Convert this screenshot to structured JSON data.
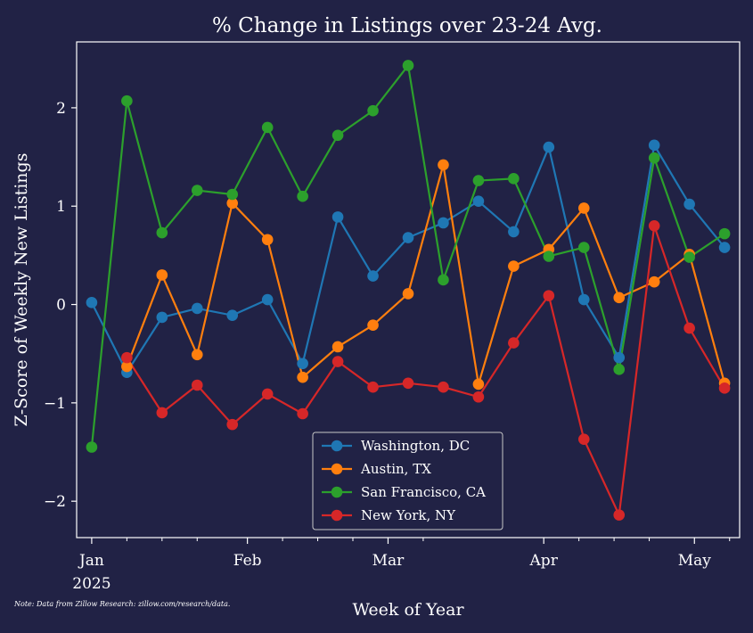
{
  "chart_data": {
    "type": "line",
    "title": "% Change in Listings over 23-24 Avg.",
    "xlabel": "Week of Year",
    "ylabel": "Z-Score of Weekly New Listings",
    "note": "Note: Data from Zillow Research: zillow.com/research/data.",
    "x": [
      "2025-01-01",
      "2025-01-08",
      "2025-01-15",
      "2025-01-22",
      "2025-01-29",
      "2025-02-05",
      "2025-02-12",
      "2025-02-19",
      "2025-02-26",
      "2025-03-05",
      "2025-03-12",
      "2025-03-19",
      "2025-03-26",
      "2025-04-02",
      "2025-04-09",
      "2025-04-16",
      "2025-04-23",
      "2025-04-30",
      "2025-05-07"
    ],
    "xlim": [
      "2024-12-29",
      "2025-05-10"
    ],
    "ylim": [
      -2.37,
      2.67
    ],
    "x_ticks": [
      {
        "date": "2025-01-01",
        "label": "Jan",
        "sublabel": "2025"
      },
      {
        "date": "2025-02-01",
        "label": "Feb",
        "sublabel": ""
      },
      {
        "date": "2025-03-01",
        "label": "Mar",
        "sublabel": ""
      },
      {
        "date": "2025-04-01",
        "label": "Apr",
        "sublabel": ""
      },
      {
        "date": "2025-05-01",
        "label": "May",
        "sublabel": ""
      }
    ],
    "minor_x_ticks": [
      "2025-01-08",
      "2025-01-15",
      "2025-01-22",
      "2025-02-08",
      "2025-02-15",
      "2025-02-22",
      "2025-03-08",
      "2025-04-08",
      "2025-04-15",
      "2025-04-22",
      "2025-05-08"
    ],
    "y_ticks": [
      {
        "value": 2,
        "label": "2"
      },
      {
        "value": 1,
        "label": "1"
      },
      {
        "value": 0,
        "label": "0"
      },
      {
        "value": -1,
        "label": "−1"
      },
      {
        "value": -2,
        "label": "−2"
      }
    ],
    "grid": false,
    "legend_position": "bottom-center",
    "series": [
      {
        "name": "Washington, DC",
        "color": "#1f77b4",
        "values": [
          0.02,
          -0.69,
          -0.13,
          -0.04,
          -0.11,
          0.05,
          -0.6,
          0.89,
          0.29,
          0.68,
          0.83,
          1.05,
          0.74,
          1.6,
          0.05,
          -0.54,
          1.62,
          1.02,
          0.58
        ]
      },
      {
        "name": "Austin, TX",
        "color": "#ff7f0e",
        "values": [
          null,
          -0.63,
          0.3,
          -0.51,
          1.03,
          0.66,
          -0.74,
          -0.43,
          -0.21,
          0.11,
          1.42,
          -0.81,
          0.39,
          0.56,
          0.98,
          0.07,
          0.23,
          0.51,
          -0.8
        ]
      },
      {
        "name": "San Francisco, CA",
        "color": "#2ca02c",
        "values": [
          -1.45,
          2.07,
          0.73,
          1.16,
          1.12,
          1.8,
          1.1,
          1.72,
          1.97,
          2.43,
          0.25,
          1.26,
          1.28,
          0.49,
          0.58,
          -0.66,
          1.49,
          0.48,
          0.72
        ]
      },
      {
        "name": "New York, NY",
        "color": "#d62728",
        "values": [
          null,
          -0.54,
          -1.1,
          -0.82,
          -1.22,
          -0.91,
          -1.11,
          -0.58,
          -0.84,
          -0.8,
          -0.84,
          -0.94,
          -0.39,
          0.09,
          -1.37,
          -2.14,
          0.8,
          -0.24,
          -0.85
        ]
      }
    ]
  }
}
